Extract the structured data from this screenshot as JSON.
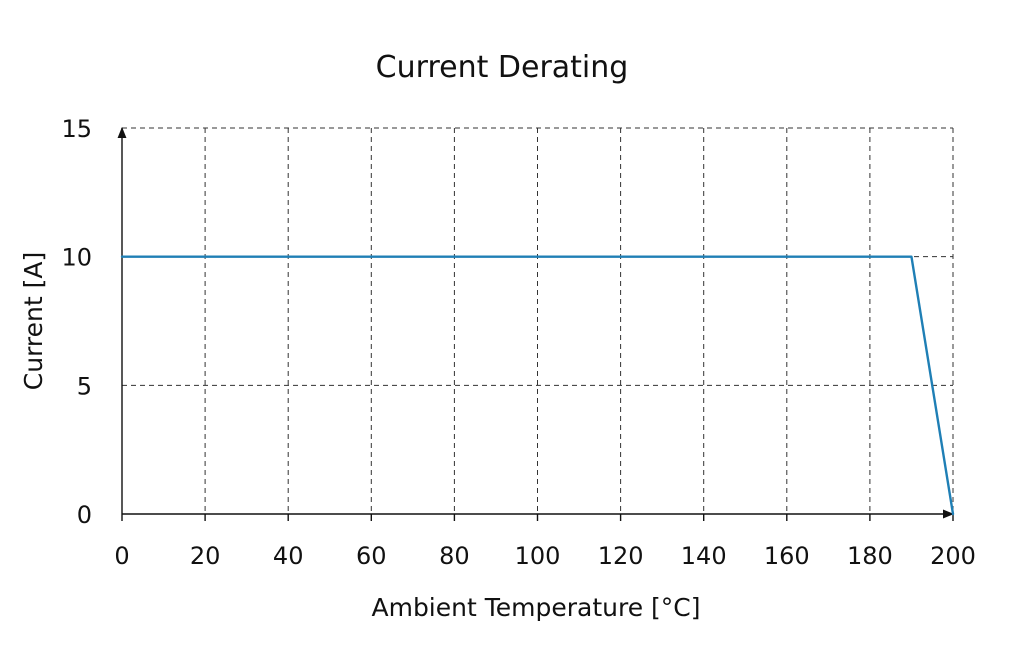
{
  "chart_data": {
    "type": "line",
    "title": "Current Derating",
    "xlabel": "Ambient Temperature [°C]",
    "ylabel": "Current [A]",
    "xlim": [
      0,
      200
    ],
    "ylim": [
      0,
      15
    ],
    "x_ticks": [
      0,
      20,
      40,
      60,
      80,
      100,
      120,
      140,
      160,
      180,
      200
    ],
    "y_ticks": [
      0,
      5,
      10,
      15
    ],
    "grid": true,
    "series": [
      {
        "x": [
          0,
          190,
          200
        ],
        "y": [
          10,
          10,
          0
        ],
        "color": "#1f7fb5"
      }
    ]
  }
}
